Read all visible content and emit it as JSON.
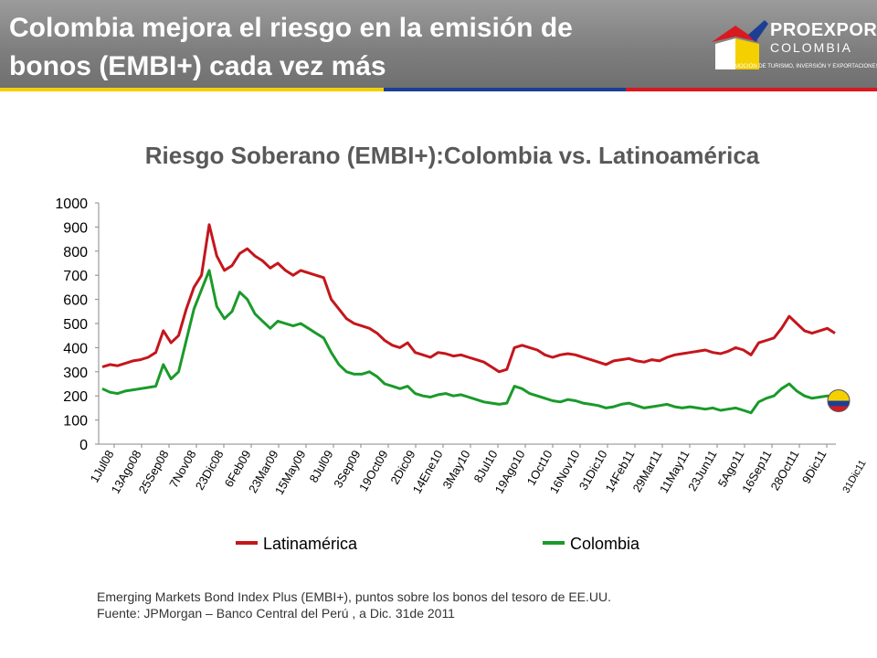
{
  "header": {
    "title_line1": "Colombia mejora el riesgo en la emisión de",
    "title_line2": "bonos (EMBI+) cada vez más",
    "logo_brand": "PROEXPORT",
    "logo_country": "COLOMBIA",
    "logo_tagline": "PROMOCIÓN DE TURISMO, INVERSIÓN Y EXPORTACIONES."
  },
  "colors": {
    "latinamerica": "#c4161c",
    "colombia": "#1a9a2a",
    "header_bg": "#8a8a8a",
    "stripe_yellow": "#f5d000",
    "stripe_blue": "#1c3f94",
    "stripe_red": "#d71920"
  },
  "footnote": {
    "line1": "Emerging Markets Bond Index Plus (EMBI+), puntos sobre los bonos del tesoro de EE.UU.",
    "line2": "Fuente: JPMorgan – Banco Central del Perú , a Dic. 31de 2011"
  },
  "chart_data": {
    "type": "line",
    "title": "Riesgo Soberano (EMBI+):Colombia vs. Latinoamérica",
    "xlabel": "",
    "ylabel": "",
    "ylim": [
      0,
      1000
    ],
    "yticks": [
      0,
      100,
      200,
      300,
      400,
      500,
      600,
      700,
      800,
      900,
      1000
    ],
    "grid": false,
    "legend_position": "bottom",
    "x_tick_labels": [
      "1Jul08",
      "13Ago08",
      "25Sep08",
      "7Nov08",
      "23Dic08",
      "6Feb09",
      "23Mar09",
      "15May09",
      "8Jul09",
      "3Sep09",
      "19Oct09",
      "2Dic09",
      "14Ene10",
      "3May10",
      "8Jul10",
      "19Ago10",
      "1Oct10",
      "16Nov10",
      "31Dic10",
      "14Feb11",
      "29Mar11",
      "11May11",
      "23Jun11",
      "5Ago11",
      "16Sep11",
      "28Oct11",
      "9Dic11"
    ],
    "x_end_label": "31Dic11",
    "series": [
      {
        "name": "Latinamérica",
        "values": [
          320,
          330,
          325,
          335,
          345,
          350,
          360,
          380,
          470,
          420,
          450,
          560,
          650,
          700,
          910,
          780,
          720,
          740,
          790,
          810,
          780,
          760,
          730,
          750,
          720,
          700,
          720,
          710,
          700,
          690,
          600,
          560,
          520,
          500,
          490,
          480,
          460,
          430,
          410,
          400,
          420,
          380,
          370,
          360,
          380,
          375,
          365,
          370,
          360,
          350,
          340,
          320,
          300,
          310,
          400,
          410,
          400,
          390,
          370,
          360,
          370,
          375,
          370,
          360,
          350,
          340,
          330,
          345,
          350,
          355,
          345,
          340,
          350,
          345,
          360,
          370,
          375,
          380,
          385,
          390,
          380,
          375,
          385,
          400,
          390,
          370,
          420,
          430,
          440,
          480,
          530,
          500,
          470,
          460,
          470,
          480,
          460
        ]
      },
      {
        "name": "Colombia",
        "values": [
          230,
          215,
          210,
          220,
          225,
          230,
          235,
          240,
          330,
          270,
          300,
          430,
          560,
          640,
          720,
          570,
          520,
          550,
          630,
          600,
          540,
          510,
          480,
          510,
          500,
          490,
          500,
          480,
          460,
          440,
          380,
          330,
          300,
          290,
          290,
          300,
          280,
          250,
          240,
          230,
          240,
          210,
          200,
          195,
          205,
          210,
          200,
          205,
          195,
          185,
          175,
          170,
          165,
          170,
          240,
          230,
          210,
          200,
          190,
          180,
          175,
          185,
          180,
          170,
          165,
          160,
          150,
          155,
          165,
          170,
          160,
          150,
          155,
          160,
          165,
          155,
          150,
          155,
          150,
          145,
          150,
          140,
          145,
          150,
          140,
          130,
          175,
          190,
          200,
          230,
          250,
          220,
          200,
          190,
          195,
          200,
          195
        ]
      }
    ]
  }
}
